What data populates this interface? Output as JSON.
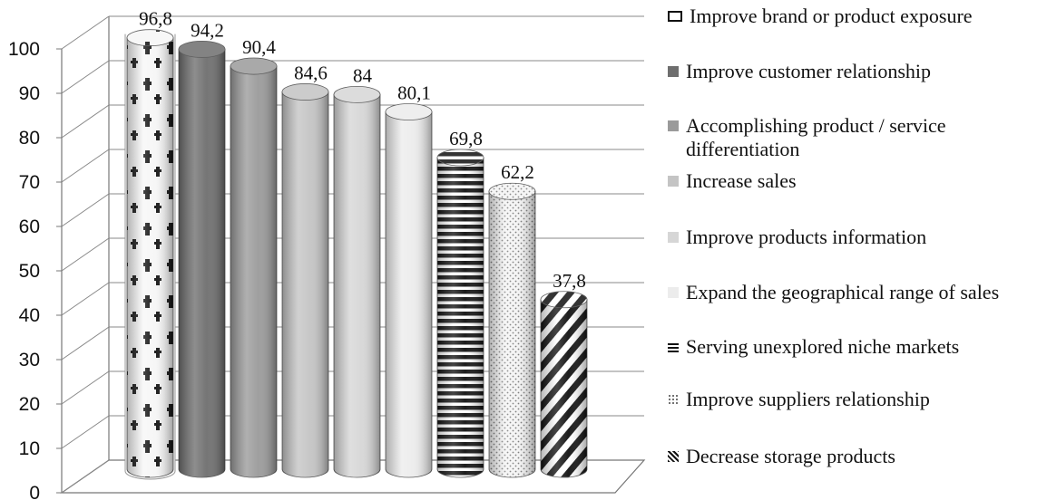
{
  "chart_data": {
    "type": "bar",
    "style": "3d-cylinder",
    "categories": [
      "Improve brand or product exposure",
      "Improve customer relationship",
      "Accomplishing product / service differentiation",
      "Increase sales",
      "Improve products information",
      "Expand the geographical range of sales",
      "Serving unexplored niche markets",
      "Improve suppliers relationship",
      "Decrease storage products"
    ],
    "values": [
      96.8,
      94.2,
      90.4,
      84.6,
      84,
      80.1,
      69.8,
      62.2,
      37.8
    ],
    "value_labels": [
      "96,8",
      "94,2",
      "90,4",
      "84,6",
      "84",
      "80,1",
      "69,8",
      "62,2",
      "37,8"
    ],
    "yticks": [
      "0",
      "10",
      "20",
      "30",
      "40",
      "50",
      "60",
      "70",
      "80",
      "90",
      "100"
    ],
    "ylim": [
      0,
      100
    ],
    "grid": true,
    "legend_position": "right",
    "colors": [
      "#eeeeee",
      "#6e6e6e",
      "#9a9a9a",
      "#c4c4c4",
      "#d6d6d6",
      "#ececec",
      "#222222",
      "#e4e4e4",
      "#ffffff"
    ],
    "patterns": [
      "logo-print",
      "solid",
      "solid",
      "solid",
      "solid",
      "solid",
      "horizontal-stripes",
      "dots",
      "diagonal-stripes"
    ],
    "legend_icons": [
      "pattern-bar-icon",
      "dark-gray-square-icon",
      "gray-square-icon",
      "light-gray-square-icon",
      "lighter-gray-square-icon",
      "pale-square-icon",
      "horizontal-stripe-icon",
      "dotted-icon",
      "diagonal-stripe-icon"
    ]
  }
}
